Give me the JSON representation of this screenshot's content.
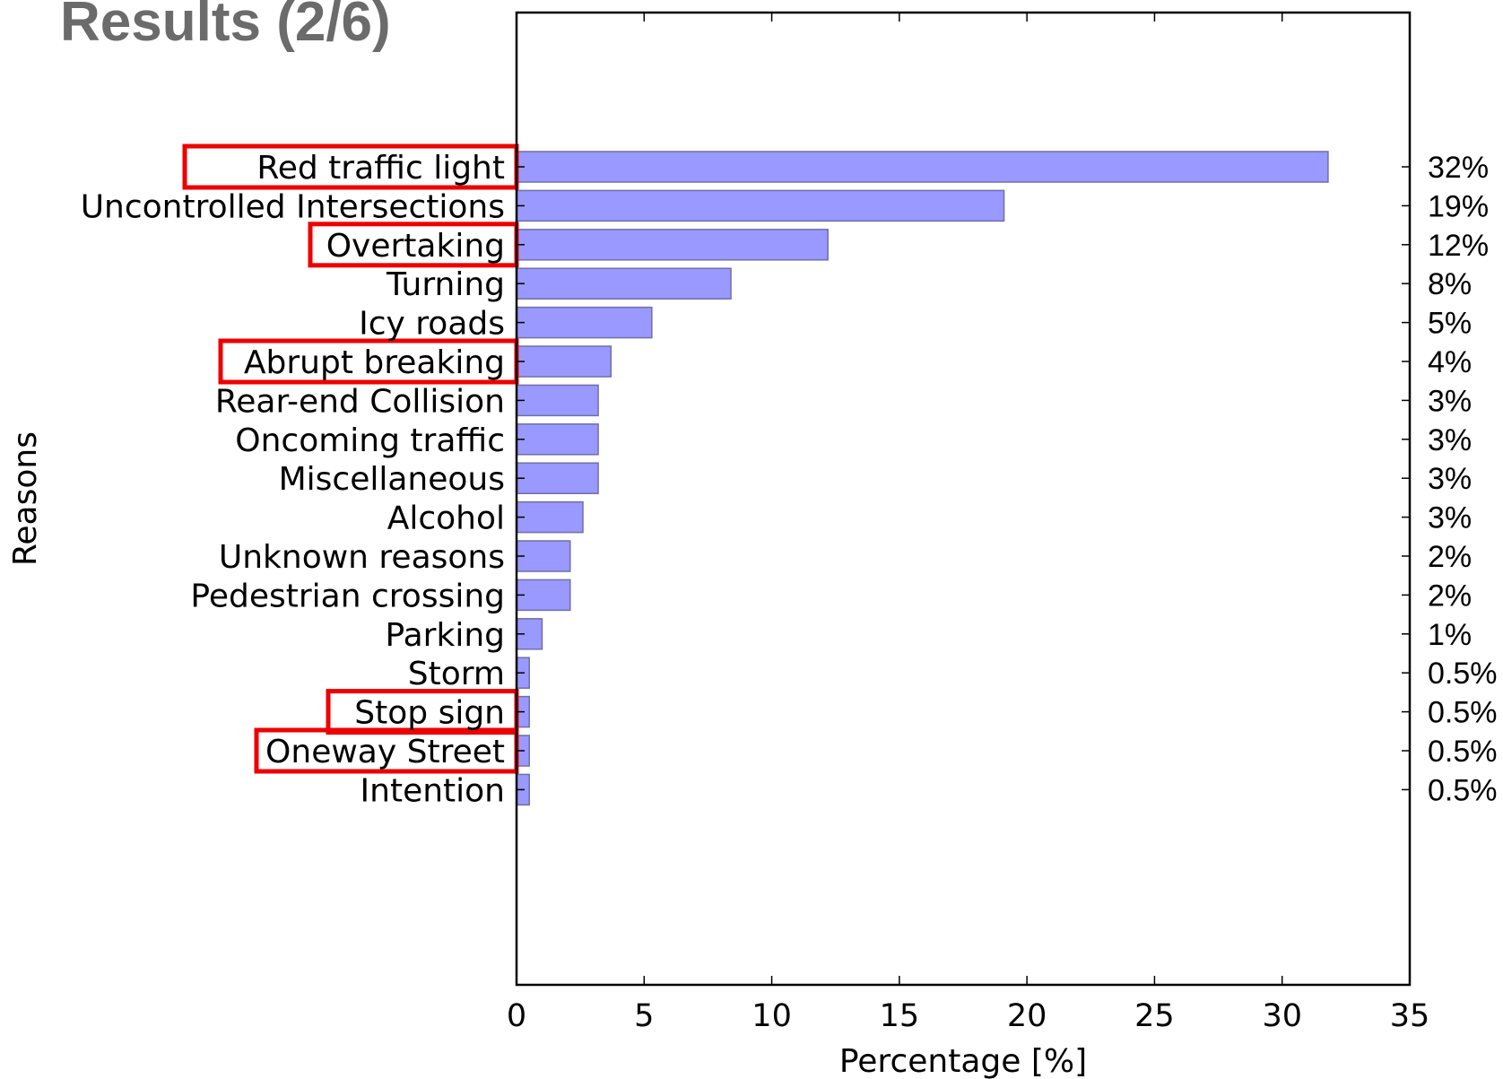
{
  "slide": {
    "title": "Results (2/6)"
  },
  "chart_data": {
    "type": "bar",
    "orientation": "horizontal",
    "title": "",
    "xlabel": "Percentage [%]",
    "ylabel": "Reasons",
    "xlim": [
      0,
      35
    ],
    "xticks": [
      0,
      5,
      10,
      15,
      20,
      25,
      30,
      35
    ],
    "grid": false,
    "bar_color": "#9999ff",
    "bar_edge_color": "#6f6fa8",
    "highlight_color": "#ee0000",
    "categories": [
      "Red traffic light",
      "Uncontrolled Intersections",
      "Overtaking",
      "Turning",
      "Icy roads",
      "Abrupt breaking",
      "Rear-end Collision",
      "Oncoming traffic",
      "Miscellaneous",
      "Alcohol",
      "Unknown reasons",
      "Pedestrian crossing",
      "Parking",
      "Storm",
      "Stop sign",
      "Oneway Street",
      "Intention"
    ],
    "values": [
      31.8,
      19.1,
      12.2,
      8.4,
      5.3,
      3.7,
      3.2,
      3.2,
      3.2,
      2.6,
      2.1,
      2.1,
      1.0,
      0.5,
      0.5,
      0.5,
      0.5
    ],
    "data_labels": [
      "32%",
      "19%",
      "12%",
      "8%",
      "5%",
      "4%",
      "3%",
      "3%",
      "3%",
      "3%",
      "2%",
      "2%",
      "1%",
      "0.5%",
      "0.5%",
      "0.5%",
      "0.5%"
    ],
    "highlighted": [
      "Red traffic light",
      "Overtaking",
      "Abrupt breaking",
      "Stop sign",
      "Oneway Street"
    ]
  }
}
